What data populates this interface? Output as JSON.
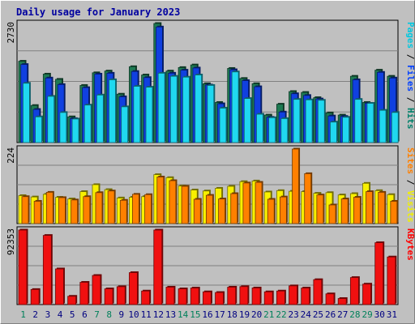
{
  "chart_data": {
    "type": "bar",
    "title": "Daily usage for January 2023",
    "days": [
      "1",
      "2",
      "3",
      "4",
      "5",
      "6",
      "7",
      "8",
      "9",
      "10",
      "11",
      "12",
      "13",
      "14",
      "15",
      "16",
      "17",
      "18",
      "19",
      "20",
      "21",
      "22",
      "23",
      "24",
      "25",
      "26",
      "27",
      "28",
      "29",
      "30",
      "31"
    ],
    "weekend_days": [
      "1",
      "7",
      "8",
      "14",
      "15",
      "21",
      "22",
      "28",
      "29"
    ],
    "panels": [
      {
        "id": "hits-files-pages",
        "max_label": "2730",
        "ymax": 2730,
        "right_labels": [
          {
            "text": "Pages",
            "color": "#00c8e0"
          },
          {
            "text": " / ",
            "color": "#000000"
          },
          {
            "text": "Files",
            "color": "#0040ff"
          },
          {
            "text": " / ",
            "color": "#000000"
          },
          {
            "text": "Hits",
            "color": "#00806a"
          }
        ],
        "series": [
          {
            "name": "Hits",
            "color": "#1e7a52",
            "values": [
              1865,
              850,
              1570,
              1450,
              590,
              1310,
              1600,
              1640,
              1110,
              1740,
              1550,
              2730,
              1640,
              1720,
              1780,
              1350,
              920,
              1700,
              1470,
              1350,
              630,
              880,
              1170,
              1150,
              1030,
              680,
              630,
              1520,
              920,
              1660,
              1520
            ]
          },
          {
            "name": "Files",
            "color": "#1040e0",
            "values": [
              1790,
              760,
              1480,
              1330,
              550,
              1260,
              1570,
              1590,
              1050,
              1630,
              1490,
              2650,
              1590,
              1660,
              1710,
              1320,
              890,
              1670,
              1420,
              1280,
              580,
              700,
              1120,
              1080,
              1000,
              610,
              600,
              1440,
              900,
              1610,
              1480
            ]
          },
          {
            "name": "Pages",
            "color": "#20d8f0",
            "values": [
              1360,
              590,
              1060,
              690,
              540,
              860,
              1090,
              1440,
              820,
              1290,
              1270,
              1590,
              1520,
              1500,
              1550,
              1310,
              790,
              1620,
              1010,
              650,
              570,
              550,
              990,
              980,
              970,
              470,
              580,
              990,
              900,
              740,
              690
            ]
          }
        ]
      },
      {
        "id": "visits-sites",
        "max_label": "224",
        "ymax": 224,
        "right_labels": [
          {
            "text": "Sites",
            "color": "#ff8000"
          },
          {
            "text": " / ",
            "color": "#000000"
          },
          {
            "text": "Visits",
            "color": "#f0f000"
          }
        ],
        "series": [
          {
            "name": "Visits",
            "color": "#f8f000",
            "values": [
              84,
              80,
              88,
              79,
              74,
              96,
              117,
              102,
              77,
              79,
              81,
              147,
              138,
              113,
              101,
              98,
              106,
              112,
              126,
              128,
              95,
              99,
              97,
              96,
              91,
              93,
              86,
              90,
              121,
              99,
              87
            ]
          },
          {
            "name": "Sites",
            "color": "#ff8000",
            "values": [
              81,
              67,
              94,
              78,
              71,
              81,
              93,
              98,
              70,
              88,
              87,
              140,
              129,
              112,
              73,
              85,
              74,
              90,
              122,
              124,
              73,
              80,
              224,
              150,
              86,
              56,
              74,
              79,
              96,
              94,
              67
            ]
          }
        ]
      },
      {
        "id": "kbytes",
        "max_label": "92353",
        "ymax": 92353,
        "right_labels": [
          {
            "text": "KBytes",
            "color": "#ff0000"
          }
        ],
        "series": [
          {
            "name": "KBytes",
            "color": "#f01010",
            "values": [
              92353,
              18700,
              85700,
              44200,
              10300,
              27600,
              36100,
              19500,
              22200,
              39600,
              16800,
              92353,
              21600,
              19500,
              20500,
              15800,
              15000,
              21600,
              22300,
              20600,
              15800,
              16800,
              23200,
              20500,
              30900,
              13300,
              7500,
              33500,
              25400,
              76700,
              59000
            ]
          }
        ]
      }
    ]
  }
}
